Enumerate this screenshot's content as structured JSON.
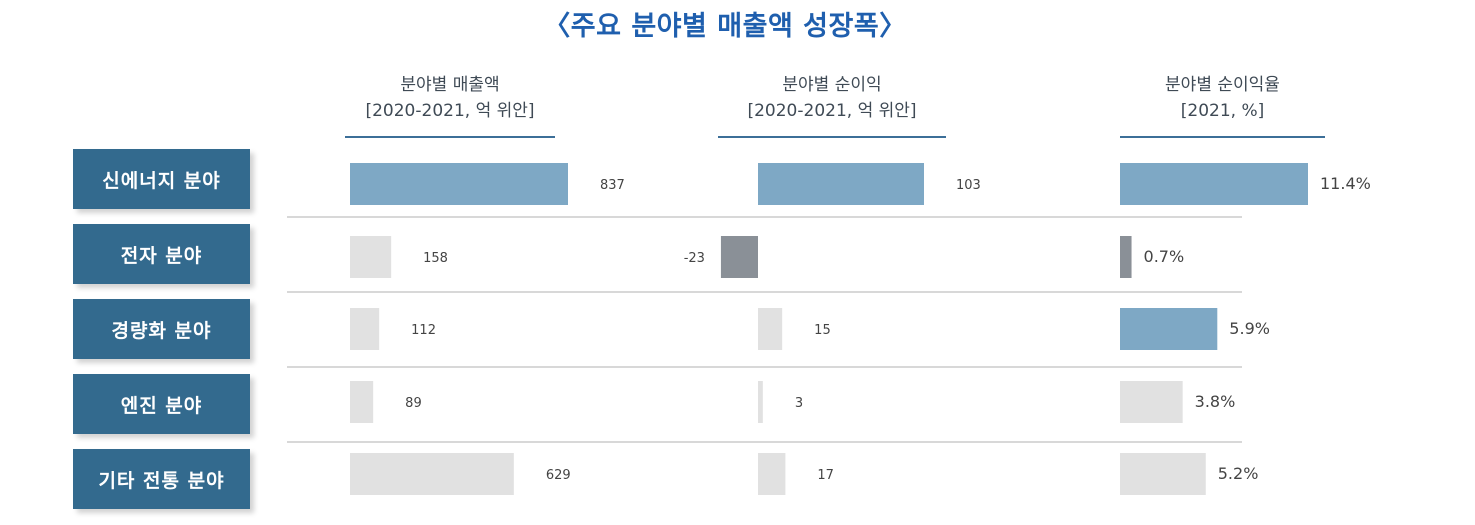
{
  "chart_data": {
    "type": "bar",
    "title": "〈주요 분야별 매출액 성장폭〉",
    "categories": [
      "신에너지 분야",
      "전자 분야",
      "경량화 분야",
      "엔진 분야",
      "기타 전통 분야"
    ],
    "panels": [
      {
        "name": "분야별 매출액",
        "unit": "[2020-2021, 억 위안]",
        "values": [
          837,
          158,
          112,
          89,
          629
        ],
        "labels": [
          "837",
          "158",
          "112",
          "89",
          "629"
        ],
        "max": 837
      },
      {
        "name": "분야별 순이익",
        "unit": "[2020-2021, 억 위안]",
        "values": [
          103,
          -23,
          15,
          3,
          17
        ],
        "labels": [
          "103",
          "-23",
          "15",
          "3",
          "17"
        ],
        "max": 103
      },
      {
        "name": "분야별 순이익율",
        "unit": "[2021, %]",
        "values": [
          11.4,
          0.7,
          5.9,
          3.8,
          5.2
        ],
        "labels": [
          "11.4%",
          "0.7%",
          "5.9%",
          "3.8%",
          "5.2%"
        ],
        "max": 11.4
      }
    ],
    "colors": {
      "highlight": "#7ea8c5",
      "normal": "#e1e1e1",
      "negative": "#8a9097",
      "category_box": "#336a8e",
      "title": "#1f5fae"
    }
  }
}
